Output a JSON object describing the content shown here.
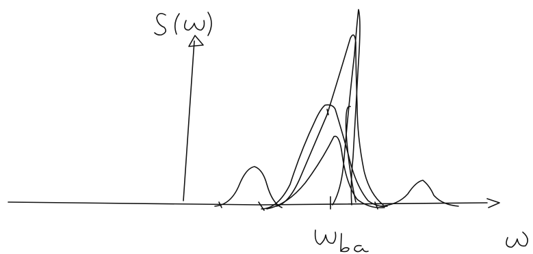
{
  "labels": {
    "y_axis": "S(ω)",
    "x_axis": "ω",
    "marker": "ω_ba"
  }
}
